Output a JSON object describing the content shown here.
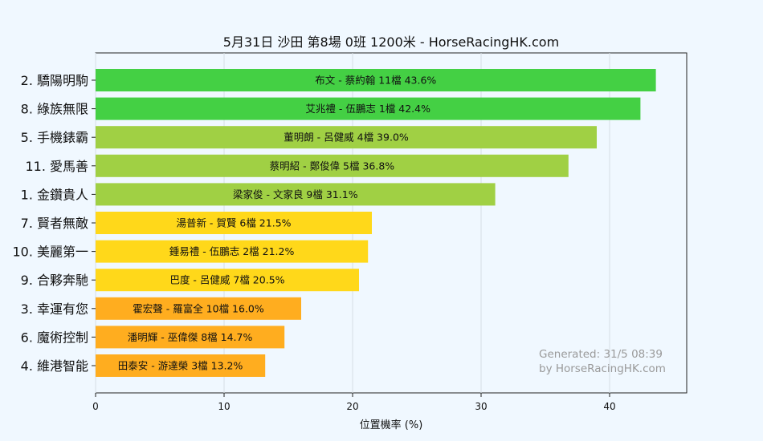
{
  "chart_data": {
    "type": "bar",
    "orientation": "horizontal",
    "title": "5月31日  沙田  第8場  0班  1200米 - HorseRacingHK.com",
    "xlabel": "位置機率 (%)",
    "ylabel": "",
    "xlim": [
      0,
      46
    ],
    "xticks": [
      "0",
      "10",
      "20",
      "30",
      "40"
    ],
    "grid": true,
    "categories": [
      "2. 驕陽明駒",
      "8. 綠族無限",
      "5. 手機錶霸",
      "11. 愛馬善",
      "1. 金鑽貴人",
      "7. 賢者無敵",
      "10. 美麗第一",
      "9. 合夥奔馳",
      "3. 幸運有您",
      "6. 魔術控制",
      "4. 維港智能"
    ],
    "values": [
      43.6,
      42.4,
      39.0,
      36.8,
      31.1,
      21.5,
      21.2,
      20.5,
      16.0,
      14.7,
      13.2
    ],
    "bar_labels": [
      "布文 - 蔡約翰 11檔  43.6%",
      "艾兆禮 - 伍鵬志 1檔  42.4%",
      "董明朗 - 呂健威 4檔  39.0%",
      "蔡明紹 - 鄭俊偉 5檔  36.8%",
      "梁家俊 - 文家良 9檔  31.1%",
      "湯普新 - 賀賢 6檔  21.5%",
      "鍾易禮 - 伍鵬志 2檔  21.2%",
      "巴度 - 呂健威 7檔  20.5%",
      "霍宏聲 - 羅富全 10檔  16.0%",
      "潘明輝 - 巫偉傑 8檔  14.7%",
      "田泰安 - 游達榮 3檔  13.2%"
    ],
    "bar_colors": [
      "#44d044",
      "#44d044",
      "#a0d044",
      "#a0d044",
      "#a0d044",
      "#ffd81a",
      "#ffd81a",
      "#ffd81a",
      "#ffad1f",
      "#ffad1f",
      "#ffad1f"
    ],
    "watermark": [
      "Generated: 31/5 08:39",
      "by HorseRacingHK.com"
    ]
  }
}
